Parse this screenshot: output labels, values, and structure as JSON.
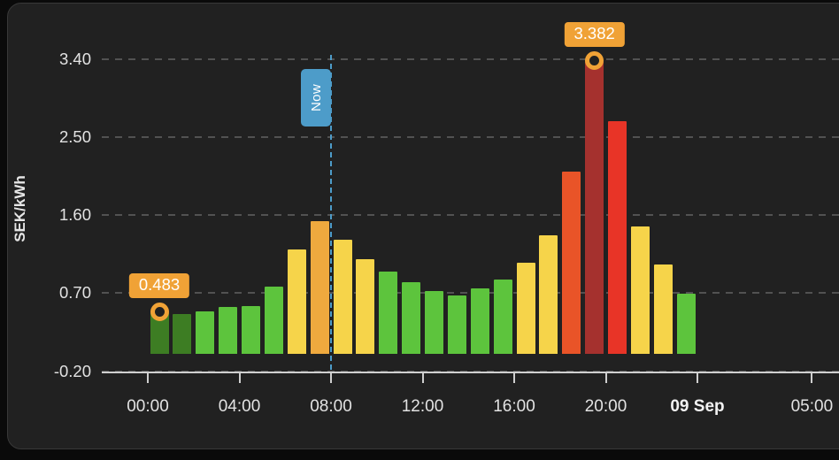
{
  "colors": {
    "page_bg": "#0a0a0a",
    "card_bg": "#212121",
    "card_border": "#383838",
    "grid": "#525252",
    "axis": "#cfcfcf",
    "label_text": "#e2e2e2",
    "now_blue": "#4d9cc9",
    "annotation_orange": "#f0a236",
    "annotation_text": "#ffffff",
    "levels": {
      "dark_green": "#3d7d23",
      "green": "#5dc43d",
      "yellow": "#f6d44a",
      "orange": "#efa93e",
      "orange_red": "#e95428",
      "red": "#e83427",
      "dark_red": "#a5312e"
    }
  },
  "chart_data": {
    "type": "bar",
    "title": "",
    "xlabel": "",
    "ylabel": "SEK/kWh",
    "ylim": [
      -0.2,
      3.4
    ],
    "grid": true,
    "legend": false,
    "yticks": [
      {
        "label": "3.40",
        "value": 3.4
      },
      {
        "label": "2.50",
        "value": 2.5
      },
      {
        "label": "1.60",
        "value": 1.6
      },
      {
        "label": "0.70",
        "value": 0.7
      },
      {
        "label": "-0.20",
        "value": -0.2
      }
    ],
    "xticks": [
      {
        "label": "00:00",
        "hour": 0,
        "bold": false
      },
      {
        "label": "04:00",
        "hour": 4,
        "bold": false
      },
      {
        "label": "08:00",
        "hour": 8,
        "bold": false
      },
      {
        "label": "12:00",
        "hour": 12,
        "bold": false
      },
      {
        "label": "16:00",
        "hour": 16,
        "bold": false
      },
      {
        "label": "20:00",
        "hour": 20,
        "bold": false
      },
      {
        "label": "09 Sep",
        "hour": 24,
        "bold": true
      },
      {
        "label": "05:00",
        "hour": 29,
        "bold": false
      }
    ],
    "bars": [
      {
        "time": "00:00",
        "value": 0.483,
        "level": "dark_green"
      },
      {
        "time": "01:00",
        "value": 0.46,
        "level": "dark_green"
      },
      {
        "time": "02:00",
        "value": 0.49,
        "level": "green"
      },
      {
        "time": "03:00",
        "value": 0.545,
        "level": "green"
      },
      {
        "time": "04:00",
        "value": 0.55,
        "level": "green"
      },
      {
        "time": "05:00",
        "value": 0.78,
        "level": "green"
      },
      {
        "time": "06:00",
        "value": 1.2,
        "level": "yellow"
      },
      {
        "time": "07:00",
        "value": 1.53,
        "level": "orange"
      },
      {
        "time": "08:00",
        "value": 1.32,
        "level": "yellow"
      },
      {
        "time": "09:00",
        "value": 1.09,
        "level": "yellow"
      },
      {
        "time": "10:00",
        "value": 0.95,
        "level": "green"
      },
      {
        "time": "11:00",
        "value": 0.83,
        "level": "green"
      },
      {
        "time": "12:00",
        "value": 0.72,
        "level": "green"
      },
      {
        "time": "13:00",
        "value": 0.67,
        "level": "green"
      },
      {
        "time": "14:00",
        "value": 0.76,
        "level": "green"
      },
      {
        "time": "15:00",
        "value": 0.86,
        "level": "green"
      },
      {
        "time": "16:00",
        "value": 1.05,
        "level": "yellow"
      },
      {
        "time": "17:00",
        "value": 1.37,
        "level": "yellow"
      },
      {
        "time": "18:00",
        "value": 2.1,
        "level": "orange_red"
      },
      {
        "time": "19:00",
        "value": 3.382,
        "level": "dark_red"
      },
      {
        "time": "20:00",
        "value": 2.68,
        "level": "red"
      },
      {
        "time": "21:00",
        "value": 1.47,
        "level": "yellow"
      },
      {
        "time": "22:00",
        "value": 1.03,
        "level": "yellow"
      },
      {
        "time": "23:00",
        "value": 0.69,
        "level": "green"
      }
    ],
    "annotations": {
      "now_line": {
        "label": "Now",
        "hour": 8
      },
      "points": [
        {
          "label": "0.483",
          "hour": 0,
          "value": 0.483
        },
        {
          "label": "3.382",
          "hour": 19,
          "value": 3.382
        }
      ]
    }
  }
}
